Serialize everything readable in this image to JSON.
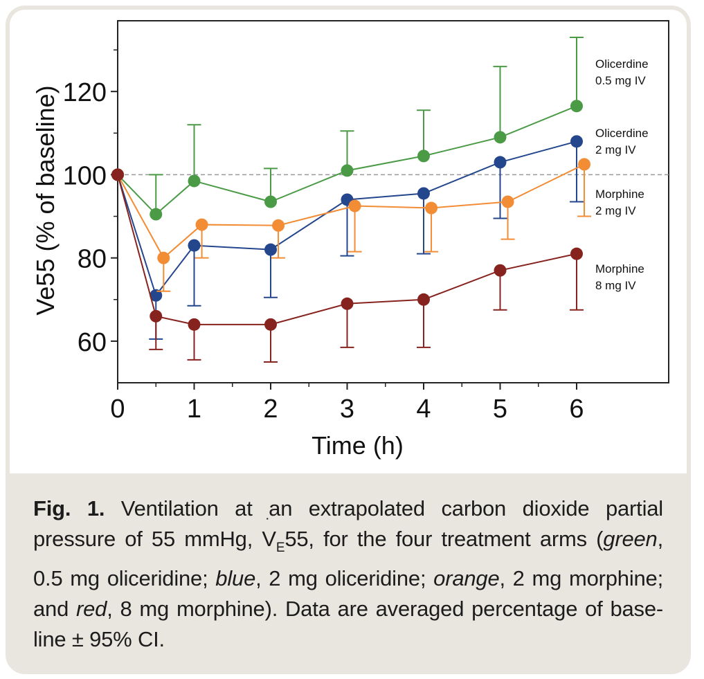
{
  "chart_data": {
    "type": "line",
    "title": "",
    "xlabel": "Time (h)",
    "ylabel": "Ve55 (% of baseline)",
    "xlim": [
      0,
      7.2
    ],
    "ylim": [
      50,
      137
    ],
    "xticks": [
      0,
      1,
      2,
      3,
      4,
      5,
      6
    ],
    "yticks": [
      60,
      80,
      100,
      120
    ],
    "reference_line": 100,
    "series": [
      {
        "name": "Olicerdine 0.5 mg IV",
        "label_lines": [
          "Olicerdine",
          "0.5 mg IV"
        ],
        "color": "#4a9a46",
        "x": [
          0,
          0.5,
          1,
          2,
          3,
          4,
          5,
          6
        ],
        "values": [
          100,
          90.5,
          98.5,
          93.5,
          101,
          104.5,
          109,
          116.5
        ],
        "err_upper": [
          null,
          100,
          112,
          101.5,
          110.5,
          115.5,
          126,
          133
        ],
        "err_lower": [
          null,
          null,
          null,
          null,
          null,
          null,
          null,
          null
        ]
      },
      {
        "name": "Olicerdine 2 mg IV",
        "label_lines": [
          "Olicerdine",
          "2 mg IV"
        ],
        "color": "#23468c",
        "x": [
          0,
          0.5,
          1,
          2,
          3,
          4,
          5,
          6
        ],
        "values": [
          100,
          71,
          83,
          82,
          94,
          95.5,
          103,
          108
        ],
        "err_upper": [
          null,
          null,
          null,
          null,
          null,
          null,
          null,
          null
        ],
        "err_lower": [
          null,
          60.5,
          68.5,
          70.5,
          80.5,
          81,
          89.5,
          93.5
        ]
      },
      {
        "name": "Morphine 2 mg IV",
        "label_lines": [
          "Morphine",
          "2 mg IV"
        ],
        "color": "#f28c35",
        "x": [
          0,
          0.6,
          1.1,
          2.1,
          3.1,
          4.1,
          5.1,
          6.1
        ],
        "values": [
          100,
          80,
          88,
          87.8,
          92.5,
          92,
          93.5,
          102.5
        ],
        "err_upper": [
          null,
          null,
          null,
          null,
          null,
          null,
          null,
          null
        ],
        "err_lower": [
          null,
          72,
          80,
          80,
          81.5,
          81.5,
          84.5,
          90
        ]
      },
      {
        "name": "Morphine 8 mg IV",
        "label_lines": [
          "Morphine",
          "8 mg IV"
        ],
        "color": "#87231f",
        "x": [
          0,
          0.5,
          1,
          2,
          3,
          4,
          5,
          6
        ],
        "values": [
          100,
          66,
          64,
          64,
          69,
          70,
          77,
          81
        ],
        "err_upper": [
          null,
          null,
          null,
          null,
          null,
          null,
          null,
          null
        ],
        "err_lower": [
          null,
          58,
          55.5,
          55,
          58.5,
          58.5,
          67.5,
          67.5
        ]
      }
    ]
  },
  "caption": {
    "label": "Fig. 1.",
    "text_1": " Ventilation at an extrapolated carbon dioxide partial pressure of 55 mmHg, ",
    "ve_symbol": "V",
    "ve_dot": "˙",
    "ve_subscript": "E",
    "ve_suffix": "55",
    "text_2": ", for the four treatment arms (",
    "green_word": "green",
    "text_3": ", 0.5 mg oliceridine; ",
    "blue_word": "blue",
    "text_4": ", 2 mg oliceridine; ",
    "orange_word": "orange",
    "text_5": ", 2 mg morphine; and ",
    "red_word": "red",
    "text_6": ", 8 mg morphine). Data are averaged percentage of base-line ± 95% CI."
  }
}
